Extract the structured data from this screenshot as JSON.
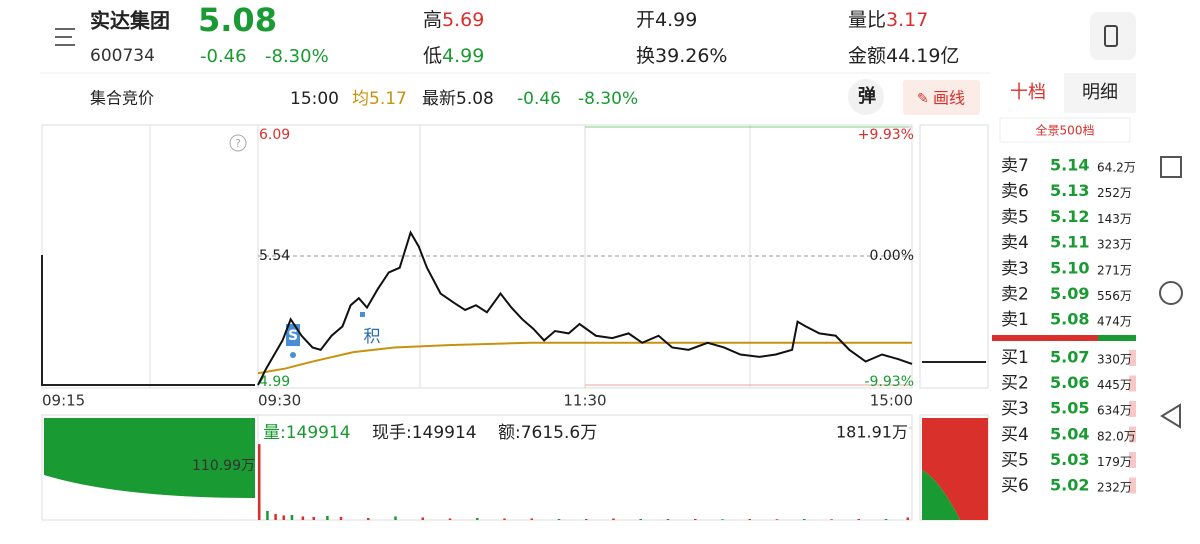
{
  "header": {
    "name": "实达集团",
    "code": "600734",
    "price": "5.08",
    "change": "-0.46",
    "change_pct": "-8.30%",
    "stats": [
      {
        "label": "高",
        "value": "5.69"
      },
      {
        "label": "低",
        "value": "4.99"
      },
      {
        "label": "开",
        "value": "4.99"
      },
      {
        "label": "换",
        "value": "39.26%"
      },
      {
        "label": "量比",
        "value": "3.17"
      },
      {
        "label": "金额",
        "value": "44.19亿"
      }
    ]
  },
  "toolbar": {
    "mode": "集合竞价",
    "time": "15:00",
    "avg": "均5.17",
    "latest": "最新5.08",
    "change": "-0.46",
    "change_pct": "-8.30%",
    "buttons": [
      "弹",
      "画线"
    ]
  },
  "tabs": [
    "十档",
    "明细"
  ],
  "depth_button": "全景500档",
  "order_book": {
    "asks": [
      {
        "label": "卖7",
        "price": "5.14",
        "volume": "64.2万"
      },
      {
        "label": "卖6",
        "price": "5.13",
        "volume": "252万"
      },
      {
        "label": "卖5",
        "price": "5.12",
        "volume": "143万"
      },
      {
        "label": "卖4",
        "price": "5.11",
        "volume": "323万"
      },
      {
        "label": "卖3",
        "price": "5.10",
        "volume": "271万"
      },
      {
        "label": "卖2",
        "price": "5.09",
        "volume": "556万"
      },
      {
        "label": "卖1",
        "price": "5.08",
        "volume": "474万"
      }
    ],
    "bids": [
      {
        "label": "买1",
        "price": "5.07",
        "volume": "330万"
      },
      {
        "label": "买2",
        "price": "5.06",
        "volume": "445万"
      },
      {
        "label": "买3",
        "price": "5.05",
        "volume": "634万"
      },
      {
        "label": "买4",
        "price": "5.04",
        "volume": "82.0万"
      },
      {
        "label": "买5",
        "price": "5.03",
        "volume": "179万"
      },
      {
        "label": "买6",
        "price": "5.02",
        "volume": "232万"
      }
    ]
  },
  "chart": {
    "ylim": [
      4.99,
      6.09
    ],
    "yticks": [
      4.99,
      5.54,
      6.09
    ],
    "pct_ticks": [
      {
        "value": 4.99,
        "label": "-9.93%"
      },
      {
        "value": 5.54,
        "label": "0.00%"
      },
      {
        "value": 6.09,
        "label": "+9.93%"
      }
    ],
    "xlim": [
      0,
      240
    ],
    "xticks": [
      {
        "value": 0,
        "label": "09:30"
      },
      {
        "value": 120,
        "label": "11:30"
      },
      {
        "value": 240,
        "label": "15:00"
      }
    ],
    "premarket_label": "09:15",
    "minutes": [
      0,
      3,
      6,
      9,
      12,
      16,
      20,
      23,
      27,
      31,
      34,
      37,
      40,
      44,
      48,
      52,
      56,
      59,
      62,
      67,
      72,
      76,
      80,
      84,
      89,
      93,
      97,
      101,
      105,
      109,
      114,
      118,
      124,
      130,
      136,
      141,
      147,
      152,
      158,
      165,
      171,
      177,
      184,
      190,
      196,
      198,
      201,
      206,
      212,
      217,
      223,
      229,
      235,
      240
    ],
    "prices": [
      4.99,
      5.06,
      5.12,
      5.18,
      5.27,
      5.2,
      5.15,
      5.14,
      5.2,
      5.24,
      5.33,
      5.36,
      5.32,
      5.4,
      5.47,
      5.49,
      5.64,
      5.58,
      5.49,
      5.38,
      5.34,
      5.31,
      5.33,
      5.3,
      5.38,
      5.32,
      5.27,
      5.23,
      5.18,
      5.22,
      5.21,
      5.25,
      5.2,
      5.19,
      5.21,
      5.17,
      5.2,
      5.15,
      5.14,
      5.17,
      5.15,
      5.12,
      5.11,
      5.12,
      5.14,
      5.26,
      5.24,
      5.21,
      5.2,
      5.14,
      5.09,
      5.12,
      5.1,
      5.08
    ],
    "avg_minutes": [
      0,
      10,
      20,
      35,
      50,
      70,
      100,
      150,
      240
    ],
    "avg": [
      5.04,
      5.06,
      5.09,
      5.13,
      5.15,
      5.16,
      5.17,
      5.17,
      5.17
    ],
    "markers": [
      "S",
      "积"
    ],
    "volume": {
      "info": [
        "量:149914",
        "现手:149914",
        "额:7615.6万"
      ],
      "vlim": [
        0,
        181.91
      ],
      "max_label": {
        "value": 181.91,
        "label": "181.91万"
      },
      "premarket_label": "110.99万",
      "minutes": [
        0,
        3,
        6,
        9,
        12,
        16,
        20,
        25,
        30,
        40,
        50,
        60,
        70,
        80,
        90,
        100,
        110,
        120,
        130,
        140,
        150,
        160,
        170,
        180,
        190,
        200,
        210,
        220,
        230,
        238
      ],
      "values": [
        150,
        18,
        12,
        9,
        10,
        7,
        6,
        8,
        6,
        4,
        7,
        5,
        3,
        4,
        3,
        3,
        2,
        2,
        3,
        2,
        2,
        2,
        1.5,
        2,
        1.5,
        2,
        1.5,
        2,
        2,
        5
      ]
    }
  }
}
